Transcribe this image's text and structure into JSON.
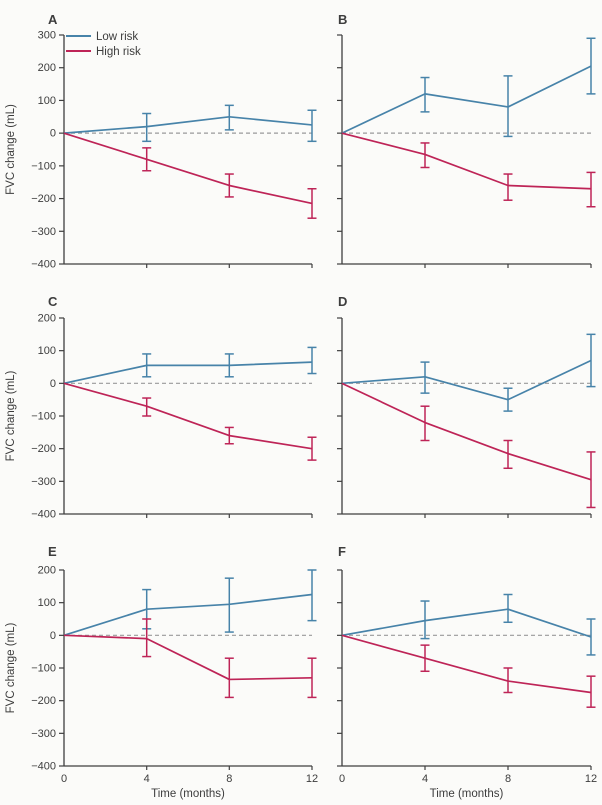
{
  "figure": {
    "ylabel": "FVC change (mL)",
    "xlabel": "Time (months)",
    "background": "#fbfbf9",
    "axis_color": "#3f3f3f",
    "zero_line_color": "#9a9a9a",
    "text_color": "#3d3d3d"
  },
  "chart_data": {
    "type": "line",
    "x": [
      0,
      4,
      8,
      12
    ],
    "xlabel": "Time (months)",
    "ylabel": "FVC change (mL)",
    "x_tick_labels": [
      "0",
      "4",
      "8",
      "12"
    ],
    "grid": false,
    "zero_reference_line": true,
    "legend_position": "top-left of panel A",
    "legend": [
      "Low risk",
      "High risk"
    ],
    "series_colors": {
      "low_risk": "#4783a9",
      "high_risk": "#be2457"
    },
    "panels": [
      {
        "label": "A",
        "ylim": [
          -400,
          300
        ],
        "yticks": [
          300,
          200,
          100,
          0,
          -100,
          -200,
          -300,
          -400
        ],
        "show_legend": true,
        "series": [
          {
            "name": "Low risk",
            "color": "#4783a9",
            "values": [
              0,
              20,
              50,
              25
            ],
            "err_lo": [
              null,
              -25,
              10,
              -25
            ],
            "err_hi": [
              null,
              60,
              85,
              70
            ]
          },
          {
            "name": "High risk",
            "color": "#be2457",
            "values": [
              0,
              -80,
              -160,
              -215
            ],
            "err_lo": [
              null,
              -115,
              -195,
              -260
            ],
            "err_hi": [
              null,
              -45,
              -125,
              -170
            ]
          }
        ]
      },
      {
        "label": "B",
        "ylim": [
          -400,
          300
        ],
        "yticks": [
          300,
          200,
          100,
          0,
          -100,
          -200,
          -300,
          -400
        ],
        "show_legend": false,
        "series": [
          {
            "name": "Low risk",
            "color": "#4783a9",
            "values": [
              0,
              120,
              80,
              205
            ],
            "err_lo": [
              null,
              65,
              -10,
              120
            ],
            "err_hi": [
              null,
              170,
              175,
              290
            ]
          },
          {
            "name": "High risk",
            "color": "#be2457",
            "values": [
              0,
              -65,
              -160,
              -170
            ],
            "err_lo": [
              null,
              -105,
              -205,
              -225
            ],
            "err_hi": [
              null,
              -30,
              -125,
              -120
            ]
          }
        ]
      },
      {
        "label": "C",
        "ylim": [
          -400,
          200
        ],
        "yticks": [
          200,
          100,
          0,
          -100,
          -200,
          -300,
          -400
        ],
        "show_legend": false,
        "series": [
          {
            "name": "Low risk",
            "color": "#4783a9",
            "values": [
              0,
              55,
              55,
              65
            ],
            "err_lo": [
              null,
              20,
              20,
              30
            ],
            "err_hi": [
              null,
              90,
              90,
              110
            ]
          },
          {
            "name": "High risk",
            "color": "#be2457",
            "values": [
              0,
              -70,
              -160,
              -200
            ],
            "err_lo": [
              null,
              -100,
              -185,
              -235
            ],
            "err_hi": [
              null,
              -45,
              -135,
              -165
            ]
          }
        ]
      },
      {
        "label": "D",
        "ylim": [
          -400,
          200
        ],
        "yticks": [
          200,
          100,
          0,
          -100,
          -200,
          -300,
          -400
        ],
        "show_legend": false,
        "series": [
          {
            "name": "Low risk",
            "color": "#4783a9",
            "values": [
              0,
              20,
              -50,
              70
            ],
            "err_lo": [
              null,
              -30,
              -85,
              -10
            ],
            "err_hi": [
              null,
              65,
              -15,
              150
            ]
          },
          {
            "name": "High risk",
            "color": "#be2457",
            "values": [
              0,
              -120,
              -215,
              -295
            ],
            "err_lo": [
              null,
              -175,
              -260,
              -380
            ],
            "err_hi": [
              null,
              -70,
              -175,
              -210
            ]
          }
        ]
      },
      {
        "label": "E",
        "ylim": [
          -400,
          200
        ],
        "yticks": [
          200,
          100,
          0,
          -100,
          -200,
          -300,
          -400
        ],
        "show_legend": false,
        "series": [
          {
            "name": "Low risk",
            "color": "#4783a9",
            "values": [
              0,
              80,
              95,
              125
            ],
            "err_lo": [
              null,
              20,
              10,
              45
            ],
            "err_hi": [
              null,
              140,
              175,
              200
            ]
          },
          {
            "name": "High risk",
            "color": "#be2457",
            "values": [
              0,
              -10,
              -135,
              -130
            ],
            "err_lo": [
              null,
              -65,
              -190,
              -190
            ],
            "err_hi": [
              null,
              50,
              -70,
              -70
            ]
          }
        ]
      },
      {
        "label": "F",
        "ylim": [
          -400,
          200
        ],
        "yticks": [
          200,
          100,
          0,
          -100,
          -200,
          -300,
          -400
        ],
        "show_legend": false,
        "series": [
          {
            "name": "Low risk",
            "color": "#4783a9",
            "values": [
              0,
              45,
              80,
              -5
            ],
            "err_lo": [
              null,
              -10,
              40,
              -60
            ],
            "err_hi": [
              null,
              105,
              125,
              50
            ]
          },
          {
            "name": "High risk",
            "color": "#be2457",
            "values": [
              0,
              -70,
              -140,
              -175
            ],
            "err_lo": [
              null,
              -110,
              -175,
              -220
            ],
            "err_hi": [
              null,
              -30,
              -100,
              -125
            ]
          }
        ]
      }
    ]
  }
}
